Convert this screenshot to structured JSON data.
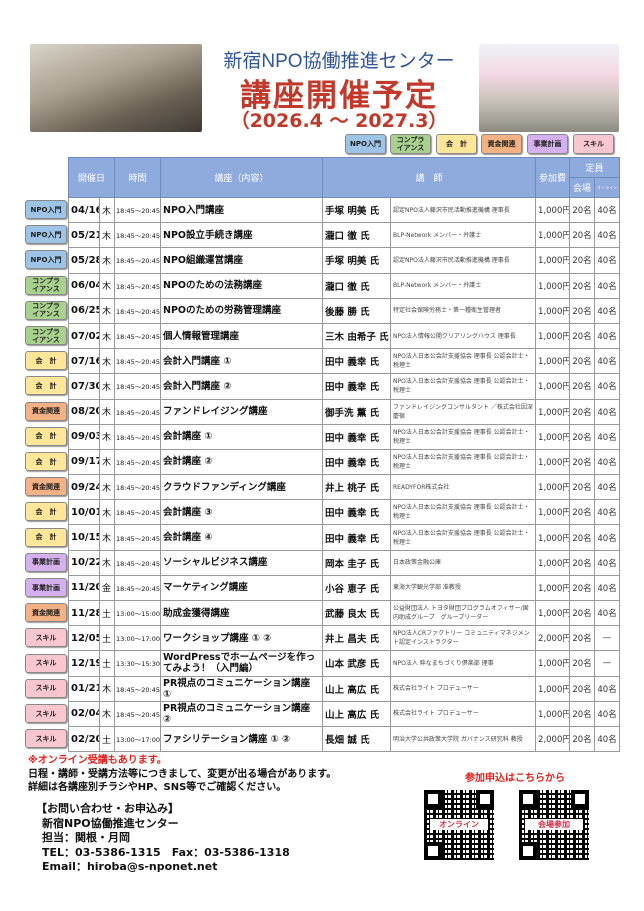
{
  "header": {
    "center": "新宿NPO協働推進センター",
    "title": "講座開催予定",
    "period": "（2026.4 ～ 2027.3）"
  },
  "categories": {
    "npo": {
      "label": "NPO入門",
      "color": "#9dc3e6"
    },
    "comp": {
      "label": "コンプラ\nイアンス",
      "color": "#a9d18e"
    },
    "acc": {
      "label": "会　計",
      "color": "#ffe699"
    },
    "fund": {
      "label": "資金関連",
      "color": "#f4b183"
    },
    "plan": {
      "label": "事業計画",
      "color": "#d5b0ee"
    },
    "skill": {
      "label": "スキル",
      "color": "#f8c6cf"
    }
  },
  "table": {
    "headers": {
      "date": "開催日",
      "time": "時間",
      "course": "講座（内容）",
      "instructor": "講　師",
      "fee": "参加費",
      "capacity": "定員",
      "venue": "会場",
      "online": "オンライン"
    },
    "rows": [
      {
        "cat": "npo",
        "date": "04/16",
        "day": "木",
        "time": "18:45～20:45",
        "course": "NPO入門講座",
        "name": "手塚 明美 氏",
        "aff": "認定NPO法人藤沢市民活動推進機構 理事長",
        "fee": "1,000円",
        "venue": "20名",
        "online": "40名"
      },
      {
        "cat": "npo",
        "date": "05/21",
        "day": "木",
        "time": "18:45～20:45",
        "course": "NPO設立手続き講座",
        "name": "瀧口 徹 氏",
        "aff": "BLP-Network メンバー・弁護士",
        "fee": "1,000円",
        "venue": "20名",
        "online": "40名"
      },
      {
        "cat": "npo",
        "date": "05/28",
        "day": "木",
        "time": "18:45～20:45",
        "course": "NPO組織運営講座",
        "name": "手塚 明美 氏",
        "aff": "認定NPO法人藤沢市民活動推進機構 理事長",
        "fee": "1,000円",
        "venue": "20名",
        "online": "40名"
      },
      {
        "cat": "comp",
        "date": "06/04",
        "day": "木",
        "time": "18:45～20:45",
        "course": "NPOのための法務講座",
        "name": "瀧口 徹 氏",
        "aff": "BLP-Network メンバー・弁護士",
        "fee": "1,000円",
        "venue": "20名",
        "online": "40名"
      },
      {
        "cat": "comp",
        "date": "06/25",
        "day": "木",
        "time": "18:45～20:45",
        "course": "NPOのための労務管理講座",
        "name": "後藤 勝 氏",
        "aff": "特定社会保険労務士・第一種衛生管理者",
        "fee": "1,000円",
        "venue": "20名",
        "online": "40名"
      },
      {
        "cat": "comp",
        "date": "07/02",
        "day": "木",
        "time": "18:45～20:45",
        "course": "個人情報管理講座",
        "name": "三木 由希子 氏",
        "aff": "NPO法人情報公開クリアリングハウス 理事長",
        "fee": "1,000円",
        "venue": "20名",
        "online": "40名"
      },
      {
        "cat": "acc",
        "date": "07/16",
        "day": "木",
        "time": "18:45～20:45",
        "course": "会計入門講座 ①",
        "name": "田中 義幸 氏",
        "aff": "NPO法人日本公会計支援協会 理事長 公認会計士・税理士",
        "fee": "1,000円",
        "venue": "20名",
        "online": "40名"
      },
      {
        "cat": "acc",
        "date": "07/30",
        "day": "木",
        "time": "18:45～20:45",
        "course": "会計入門講座 ②",
        "name": "田中 義幸 氏",
        "aff": "NPO法人日本公会計支援協会 理事長 公認会計士・税理士",
        "fee": "1,000円",
        "venue": "20名",
        "online": "40名"
      },
      {
        "cat": "fund",
        "date": "08/20",
        "day": "木",
        "time": "18:45～20:45",
        "course": "ファンドレイジング講座",
        "name": "御手洗 薫 氏",
        "aff": "ファンドレイジングコンサルタント ／株式会社因深慶宿",
        "fee": "1,000円",
        "venue": "20名",
        "online": "40名"
      },
      {
        "cat": "acc",
        "date": "09/03",
        "day": "木",
        "time": "18:45～20:45",
        "course": "会計講座 ①",
        "name": "田中 義幸 氏",
        "aff": "NPO法人日本公会計支援協会 理事長 公認会計士・税理士",
        "fee": "1,000円",
        "venue": "20名",
        "online": "40名"
      },
      {
        "cat": "acc",
        "date": "09/17",
        "day": "木",
        "time": "18:45～20:45",
        "course": "会計講座 ②",
        "name": "田中 義幸 氏",
        "aff": "NPO法人日本公会計支援協会 理事長 公認会計士・税理士",
        "fee": "1,000円",
        "venue": "20名",
        "online": "40名"
      },
      {
        "cat": "fund",
        "date": "09/24",
        "day": "木",
        "time": "18:45～20:45",
        "course": "クラウドファンディング講座",
        "name": "井上 桃子 氏",
        "aff": "READYFOR株式会社",
        "fee": "1,000円",
        "venue": "20名",
        "online": "40名"
      },
      {
        "cat": "acc",
        "date": "10/01",
        "day": "木",
        "time": "18:45～20:45",
        "course": "会計講座 ③",
        "name": "田中 義幸 氏",
        "aff": "NPO法人日本公会計支援協会 理事長 公認会計士・税理士",
        "fee": "1,000円",
        "venue": "20名",
        "online": "40名"
      },
      {
        "cat": "acc",
        "date": "10/15",
        "day": "木",
        "time": "18:45～20:45",
        "course": "会計講座 ④",
        "name": "田中 義幸 氏",
        "aff": "NPO法人日本公会計支援協会 理事長 公認会計士・税理士",
        "fee": "1,000円",
        "venue": "20名",
        "online": "40名"
      },
      {
        "cat": "plan",
        "date": "10/22",
        "day": "木",
        "time": "18:45～20:45",
        "course": "ソーシャルビジネス講座",
        "name": "岡本 圭子 氏",
        "aff": "日本政策金融公庫",
        "fee": "1,000円",
        "venue": "20名",
        "online": "40名"
      },
      {
        "cat": "plan",
        "date": "11/20",
        "day": "金",
        "time": "18:45～20:45",
        "course": "マーケティング講座",
        "name": "小谷 恵子 氏",
        "aff": "東海大学観光学部 准教授",
        "fee": "1,000円",
        "venue": "20名",
        "online": "40名"
      },
      {
        "cat": "fund",
        "date": "11/28",
        "day": "土",
        "time": "13:00～15:00",
        "course": "助成金獲得講座",
        "name": "武藤 良太 氏",
        "aff": "公益財団法人 トヨタ財団プログラムオフィサー/国内助成グループ　グループリーダー",
        "fee": "1,000円",
        "venue": "20名",
        "online": "40名"
      },
      {
        "cat": "skill",
        "date": "12/05",
        "day": "土",
        "time": "13:00～17:00",
        "course": "ワークショップ講座 ① ②",
        "name": "井上 昌夫 氏",
        "aff": "NPO法人CRファクトリー コミュニティマネジメント認定インストラクター",
        "fee": "2,000円",
        "venue": "20名",
        "online": "—"
      },
      {
        "cat": "skill",
        "date": "12/19",
        "day": "土",
        "time": "13:30～15:30",
        "course": "WordPressでホームページを作ってみよう！（入門編）",
        "name": "山本 武彦 氏",
        "aff": "NPO法人 粋なまちづくり倶楽部 理事",
        "fee": "1,000円",
        "venue": "20名",
        "online": "—"
      },
      {
        "cat": "skill",
        "date": "01/21",
        "day": "木",
        "time": "18:45～20:45",
        "course": "PR視点のコミュニケーション講座 ①",
        "name": "山上 高広 氏",
        "aff": "株式会社ライト プロデューサー",
        "fee": "1,000円",
        "venue": "20名",
        "online": "40名"
      },
      {
        "cat": "skill",
        "date": "02/04",
        "day": "木",
        "time": "18:45～20:45",
        "course": "PR視点のコミュニケーション講座 ②",
        "name": "山上 高広 氏",
        "aff": "株式会社ライト プロデューサー",
        "fee": "1,000円",
        "venue": "20名",
        "online": "40名"
      },
      {
        "cat": "skill",
        "date": "02/20",
        "day": "土",
        "time": "13:00～17:00",
        "course": "ファシリテーション講座 ① ②",
        "name": "長畑 誠 氏",
        "aff": "明治大学公共政策大学院 ガバナンス研究科 教授",
        "fee": "2,000円",
        "venue": "20名",
        "online": "40名"
      }
    ]
  },
  "notes": {
    "online": "※オンライン受講もあります。",
    "line1": "日程・講師・受講方法等につきまして、変更が出る場合があります。",
    "line2": "詳細は各講座別チラシやHP、SNS等でご確認ください。"
  },
  "contact": {
    "heading": "【お問い合わせ・お申込み】",
    "org": "新宿NPO協働推進センター",
    "staff": "担当：関根・月岡",
    "phone": "TEL：03-5386-1315　Fax：03-5386-1318",
    "email": "Email：hiroba@s-nponet.net"
  },
  "apply": {
    "heading": "参加申込はこちらから",
    "qr_online": "オンライン",
    "qr_venue": "会場参加"
  }
}
